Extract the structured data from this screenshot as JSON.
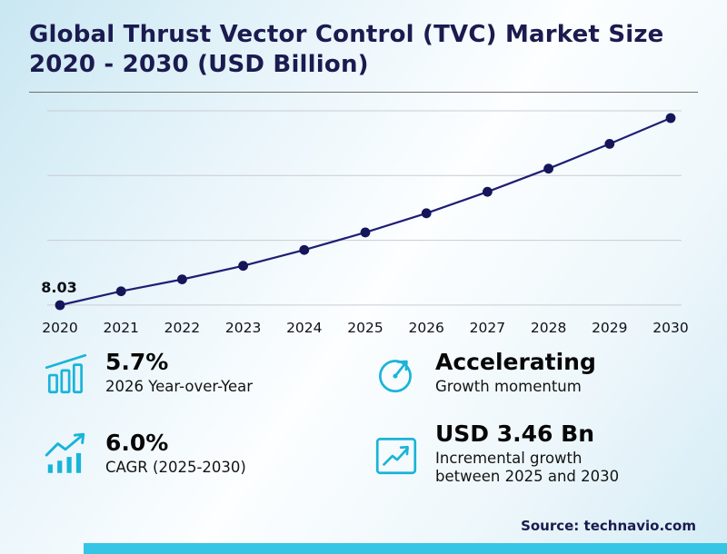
{
  "title": "Global Thrust Vector Control (TVC) Market Size 2020 - 2030 (USD Billion)",
  "chart_data": {
    "type": "line",
    "title": "Global Thrust Vector Control (TVC) Market Size 2020 - 2030 (USD Billion)",
    "x": [
      2020,
      2021,
      2022,
      2023,
      2024,
      2025,
      2026,
      2027,
      2028,
      2029,
      2030
    ],
    "values": [
      8.03,
      8.45,
      8.81,
      9.22,
      9.7,
      10.23,
      10.81,
      11.46,
      12.16,
      12.91,
      13.69
    ],
    "point_label": "8.03",
    "xlabel": "",
    "ylabel": "USD Billion",
    "ylim": [
      7.8,
      14.2
    ],
    "grid": true,
    "legend": "none",
    "line_color": "#1e1e74",
    "marker_color": "#15155a"
  },
  "stats": [
    {
      "icon": "growth-bars-icon",
      "value": "5.7%",
      "label": "2026 Year-over-Year"
    },
    {
      "icon": "gauge-icon",
      "value": "Accelerating",
      "label": "Growth momentum"
    },
    {
      "icon": "trend-bars-icon",
      "value": "6.0%",
      "label": "CAGR (2025-2030)"
    },
    {
      "icon": "boxed-trend-icon",
      "value": "USD 3.46 Bn",
      "label": "Incremental growth between 2025 and 2030"
    }
  ],
  "source": "Source: technavio.com",
  "colors": {
    "accent": "#19b4d8",
    "navy": "#1b1b4f",
    "trend_line": "#1e1e74",
    "bottom_bar": "#35c6e6"
  }
}
